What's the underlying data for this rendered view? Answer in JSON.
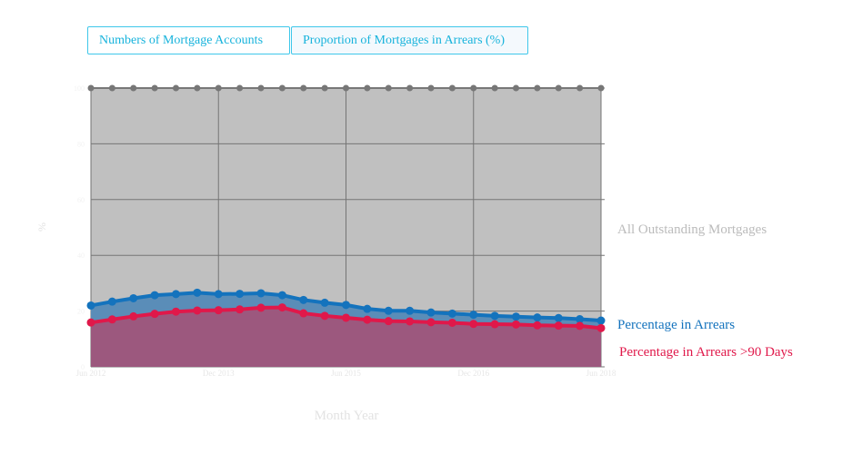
{
  "tabs": [
    {
      "label": "Numbers of Mortgage Accounts"
    },
    {
      "label": "Proportion of Mortgages in Arrears (%)"
    }
  ],
  "colors": {
    "tab_border": "#3fc7ea",
    "tab_text": "#17b3dc",
    "plot_background": "#c0c0c0",
    "all_mortgages": "#777777",
    "arrears": "#1473bd",
    "arrears_fill": "#5a8db8",
    "arrears_90": "#e0184a",
    "arrears_90_fill": "#9c587e",
    "label_all": "#bbbbbb",
    "gridline": "#757575"
  },
  "chart_data": {
    "type": "area",
    "xlabel": "Month Year",
    "ylabel": "%",
    "ylim": [
      0,
      100
    ],
    "yticks": [
      0,
      20,
      40,
      60,
      80,
      100
    ],
    "x_tick_labels": [
      "Jun 2012",
      "Dec 2013",
      "Jun 2015",
      "Dec 2016",
      "Jun 2018"
    ],
    "x": [
      "Jun 2012",
      "Sep 2012",
      "Dec 2012",
      "Mar 2013",
      "Jun 2013",
      "Sep 2013",
      "Dec 2013",
      "Mar 2014",
      "Jun 2014",
      "Sep 2014",
      "Dec 2014",
      "Mar 2015",
      "Jun 2015",
      "Sep 2015",
      "Dec 2015",
      "Mar 2016",
      "Jun 2016",
      "Sep 2016",
      "Dec 2016",
      "Mar 2017",
      "Jun 2017",
      "Sep 2017",
      "Dec 2017",
      "Mar 2018",
      "Jun 2018"
    ],
    "series": [
      {
        "name": "All Outstanding Mortgages",
        "values": [
          100,
          100,
          100,
          100,
          100,
          100,
          100,
          100,
          100,
          100,
          100,
          100,
          100,
          100,
          100,
          100,
          100,
          100,
          100,
          100,
          100,
          100,
          100,
          100,
          100
        ]
      },
      {
        "name": "Percentage in Arrears",
        "values": [
          22.0,
          23.4,
          24.6,
          25.7,
          26.1,
          26.6,
          26.1,
          26.2,
          26.4,
          25.7,
          24.0,
          23.0,
          22.2,
          20.8,
          20.1,
          20.1,
          19.5,
          19.1,
          18.7,
          18.3,
          18.0,
          17.7,
          17.5,
          17.1,
          16.6
        ]
      },
      {
        "name": "Percentage in Arrears >90 Days",
        "values": [
          15.9,
          17.0,
          18.1,
          19.0,
          19.8,
          20.2,
          20.3,
          20.6,
          21.2,
          21.3,
          19.2,
          18.3,
          17.6,
          16.9,
          16.4,
          16.3,
          16.0,
          15.8,
          15.4,
          15.3,
          15.2,
          14.9,
          14.8,
          14.7,
          13.9
        ]
      }
    ],
    "grid": true,
    "legend": "right"
  }
}
